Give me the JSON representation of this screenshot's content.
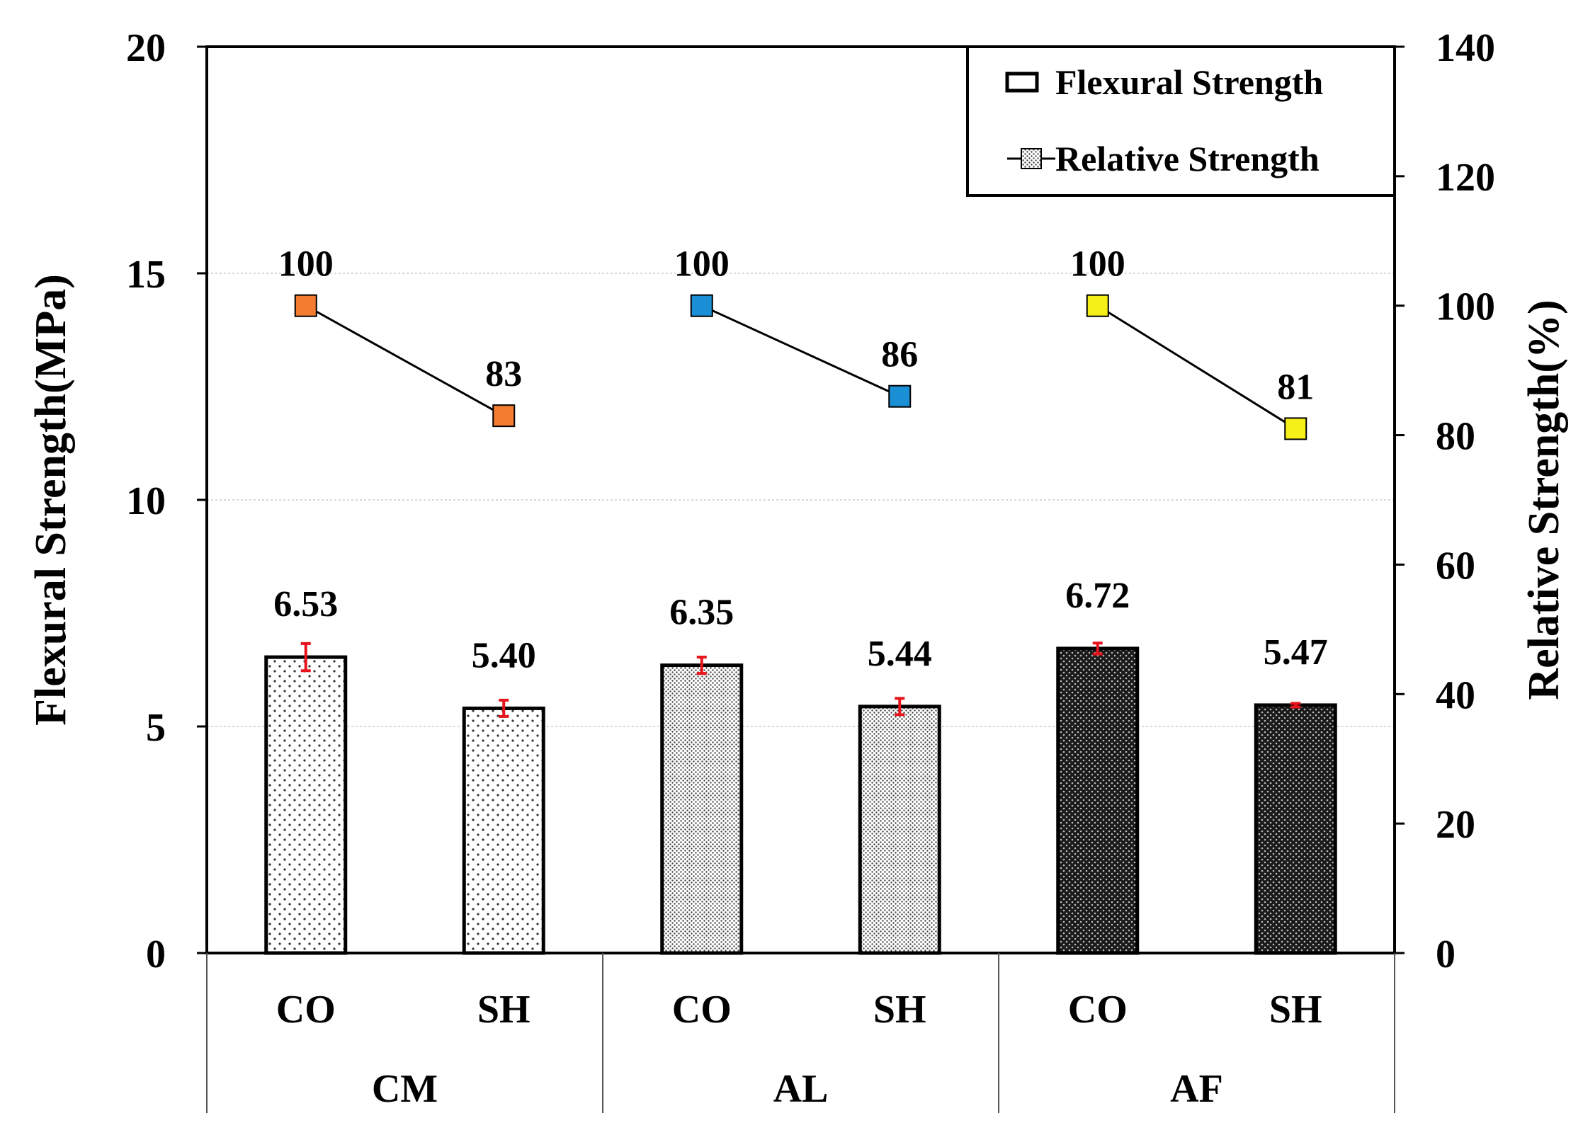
{
  "chart_data": {
    "type": "bar",
    "ylabel": "Flexural Strength(MPa)",
    "y2label": "Relative Strength(%)",
    "ylim": [
      0,
      20
    ],
    "y2lim": [
      0,
      140
    ],
    "yticks": [
      "0",
      "5",
      "10",
      "15",
      "20"
    ],
    "y2ticks": [
      "0",
      "20",
      "40",
      "60",
      "80",
      "100",
      "120",
      "140"
    ],
    "grid": true,
    "legend_position": "top-right",
    "legend": {
      "bar": "Flexural Strength",
      "line": "Relative Strength"
    },
    "groups": [
      {
        "name": "CM",
        "pattern": "sparse-dots",
        "marker_color": "#f47c30",
        "items": [
          {
            "category": "CO",
            "flexural": 6.53,
            "flexural_label": "6.53",
            "error": 0.3,
            "relative": 100,
            "relative_label": "100"
          },
          {
            "category": "SH",
            "flexural": 5.4,
            "flexural_label": "5.40",
            "error": 0.18,
            "relative": 83,
            "relative_label": "83"
          }
        ]
      },
      {
        "name": "AL",
        "pattern": "dense-dots",
        "marker_color": "#1a8fd6",
        "items": [
          {
            "category": "CO",
            "flexural": 6.35,
            "flexural_label": "6.35",
            "error": 0.18,
            "relative": 100,
            "relative_label": "100"
          },
          {
            "category": "SH",
            "flexural": 5.44,
            "flexural_label": "5.44",
            "error": 0.18,
            "relative": 86,
            "relative_label": "86"
          }
        ]
      },
      {
        "name": "AF",
        "pattern": "dark-grid",
        "marker_color": "#f4f018",
        "items": [
          {
            "category": "CO",
            "flexural": 6.72,
            "flexural_label": "6.72",
            "error": 0.12,
            "relative": 100,
            "relative_label": "100"
          },
          {
            "category": "SH",
            "flexural": 5.47,
            "flexural_label": "5.47",
            "error": 0.04,
            "relative": 81,
            "relative_label": "81"
          }
        ]
      }
    ],
    "colors": {
      "error_bar": "#e8141c",
      "line": "#000000",
      "grid": "#cccccc"
    }
  }
}
